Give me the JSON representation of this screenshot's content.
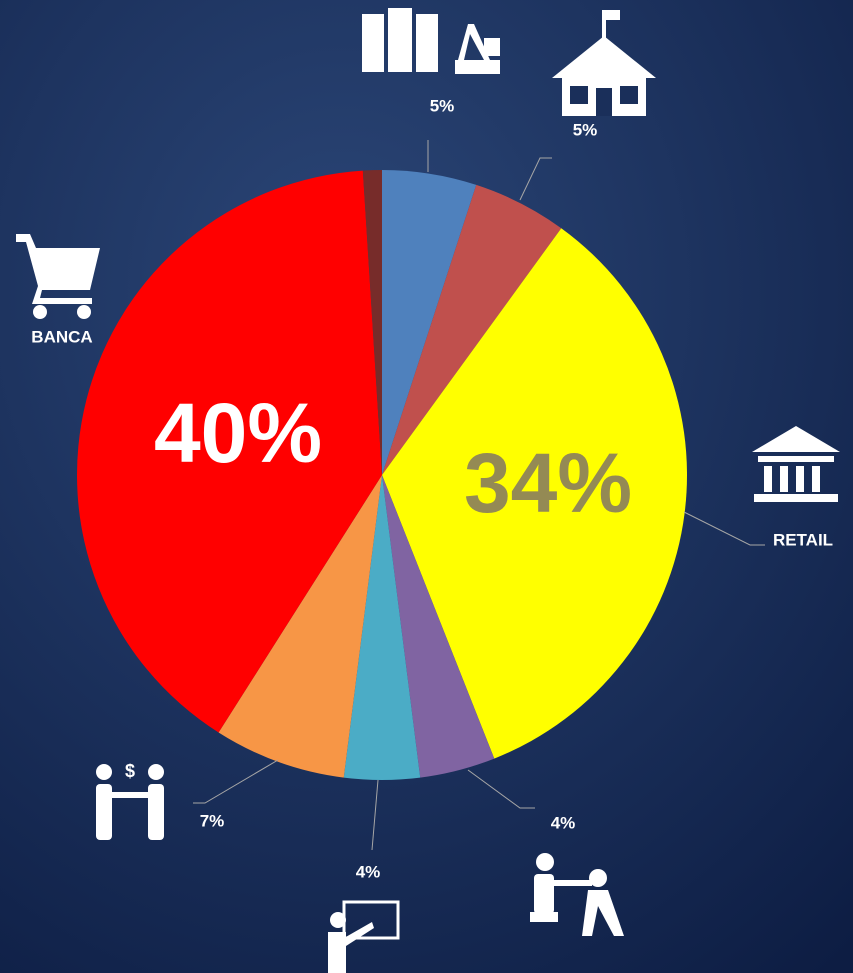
{
  "chart_data": {
    "type": "pie",
    "categories": [
      null,
      null,
      "RETAIL",
      null,
      null,
      null,
      "BANCA",
      null
    ],
    "values": [
      5,
      5,
      34,
      4,
      4,
      7,
      40,
      1
    ],
    "value_labels": [
      "5%",
      "5%",
      "34%",
      "4%",
      "4%",
      "7%",
      "40%",
      null
    ],
    "colors": [
      "#4f81bd",
      "#c0504d",
      "#ffff00",
      "#8064a2",
      "#4bacc6",
      "#f79646",
      "#ff0000",
      "#772c2a"
    ]
  }
}
